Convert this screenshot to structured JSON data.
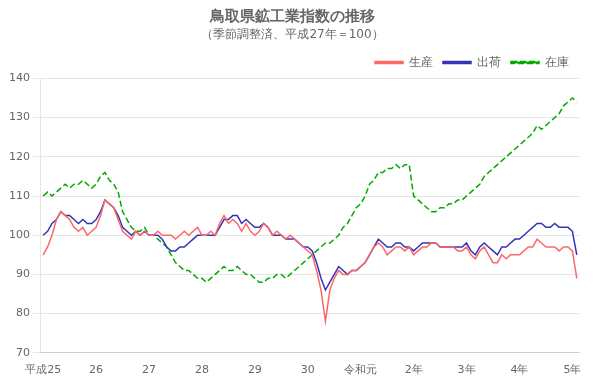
{
  "chart_data": {
    "type": "line",
    "title": "鳥取県鉱工業指数の推移",
    "subtitle": "（季節調整済、平成27年＝100）",
    "categories": [
      "平成25",
      null,
      null,
      null,
      null,
      null,
      null,
      null,
      null,
      null,
      null,
      null,
      "26",
      null,
      null,
      null,
      null,
      null,
      null,
      null,
      null,
      null,
      null,
      null,
      "27",
      null,
      null,
      null,
      null,
      null,
      null,
      null,
      null,
      null,
      null,
      null,
      "28",
      null,
      null,
      null,
      null,
      null,
      null,
      null,
      null,
      null,
      null,
      null,
      "29",
      null,
      null,
      null,
      null,
      null,
      null,
      null,
      null,
      null,
      null,
      null,
      "30",
      null,
      null,
      null,
      null,
      null,
      null,
      null,
      null,
      null,
      null,
      null,
      "令和元",
      null,
      null,
      null,
      null,
      null,
      null,
      null,
      null,
      null,
      null,
      null,
      "2年",
      null,
      null,
      null,
      null,
      null,
      null,
      null,
      null,
      null,
      null,
      null,
      "3年",
      null,
      null,
      null,
      null,
      null,
      null,
      null,
      null,
      null,
      null,
      null,
      "4年",
      null,
      null,
      null,
      null,
      null,
      null,
      null,
      null,
      null,
      null,
      null,
      "5年",
      null
    ],
    "series": [
      {
        "name": "生産",
        "color": "#FF6666",
        "line_style": "solid",
        "values": [
          95,
          97,
          100,
          104,
          106,
          105,
          104,
          102,
          101,
          102,
          100,
          101,
          102,
          105,
          109,
          108,
          107,
          104,
          101,
          100,
          99,
          101,
          100,
          101,
          100,
          100,
          101,
          100,
          100,
          100,
          99,
          100,
          101,
          100,
          101,
          102,
          100,
          100,
          101,
          100,
          103,
          105,
          103,
          104,
          103,
          101,
          103,
          101,
          100,
          101,
          103,
          102,
          100,
          101,
          100,
          99,
          100,
          99,
          98,
          97,
          96,
          95,
          91,
          86,
          78,
          86,
          89,
          91,
          90,
          90,
          91,
          91,
          92,
          93,
          95,
          97,
          98,
          97,
          95,
          96,
          97,
          97,
          96,
          97,
          95,
          96,
          97,
          97,
          98,
          98,
          97,
          97,
          97,
          97,
          96,
          96,
          97,
          95,
          94,
          96,
          97,
          95,
          93,
          93,
          95,
          94,
          95,
          95,
          95,
          96,
          97,
          97,
          99,
          98,
          97,
          97,
          97,
          96,
          97,
          97,
          96,
          89
        ]
      },
      {
        "name": "出荷",
        "color": "#3333BB",
        "line_style": "solid",
        "values": [
          100,
          101,
          103,
          104,
          106,
          105,
          105,
          104,
          103,
          104,
          103,
          103,
          104,
          106,
          109,
          108,
          107,
          105,
          102,
          101,
          100,
          101,
          100,
          101,
          100,
          100,
          100,
          99,
          97,
          96,
          96,
          97,
          97,
          98,
          99,
          100,
          100,
          100,
          100,
          100,
          102,
          104,
          104,
          105,
          105,
          103,
          104,
          103,
          102,
          102,
          103,
          102,
          100,
          100,
          100,
          99,
          99,
          99,
          98,
          97,
          97,
          96,
          93,
          89,
          86,
          88,
          90,
          92,
          91,
          90,
          91,
          91,
          92,
          93,
          95,
          97,
          99,
          98,
          97,
          97,
          98,
          98,
          97,
          97,
          96,
          97,
          98,
          98,
          98,
          98,
          97,
          97,
          97,
          97,
          97,
          97,
          98,
          96,
          95,
          97,
          98,
          97,
          96,
          95,
          97,
          97,
          98,
          99,
          99,
          100,
          101,
          102,
          103,
          103,
          102,
          102,
          103,
          102,
          102,
          102,
          101,
          95
        ]
      },
      {
        "name": "在庫",
        "color": "#00AA00",
        "line_style": "dashed",
        "values": [
          110,
          111,
          110,
          111,
          112,
          113,
          112,
          113,
          113,
          114,
          113,
          112,
          113,
          115,
          116,
          114,
          113,
          111,
          106,
          104,
          102,
          101,
          101,
          102,
          100,
          100,
          99,
          98,
          97,
          95,
          93,
          92,
          91,
          91,
          90,
          89,
          89,
          88,
          89,
          90,
          91,
          92,
          91,
          91,
          92,
          91,
          90,
          90,
          89,
          88,
          88,
          89,
          89,
          90,
          90,
          89,
          90,
          91,
          92,
          93,
          94,
          95,
          96,
          97,
          98,
          98,
          99,
          100,
          102,
          103,
          105,
          107,
          108,
          110,
          113,
          114,
          116,
          116,
          117,
          117,
          118,
          117,
          118,
          118,
          110,
          109,
          108,
          107,
          106,
          106,
          107,
          107,
          108,
          108,
          109,
          109,
          110,
          111,
          112,
          113,
          115,
          116,
          117,
          118,
          119,
          120,
          121,
          122,
          123,
          124,
          125,
          126,
          128,
          127,
          128,
          129,
          130,
          131,
          133,
          134,
          135,
          134
        ]
      }
    ],
    "ylim": [
      70,
      140
    ],
    "yticks": [
      70,
      80,
      90,
      100,
      110,
      120,
      130,
      140
    ],
    "grid": "y",
    "legend": "upper right"
  }
}
